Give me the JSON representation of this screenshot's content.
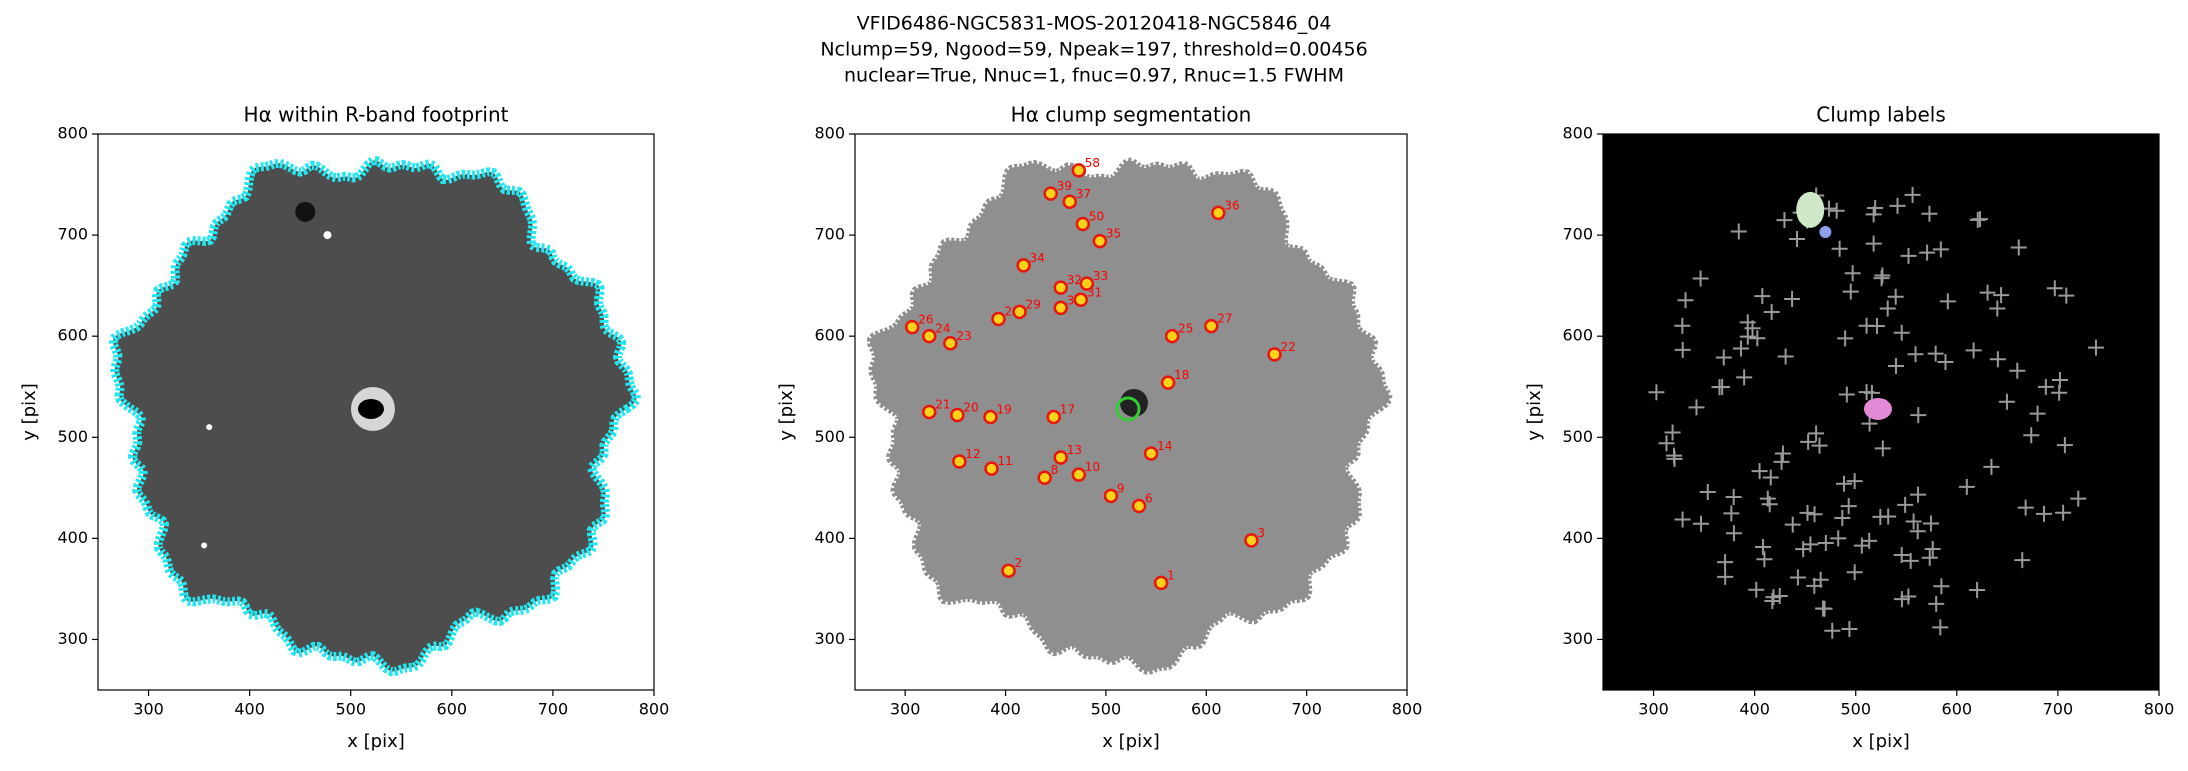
{
  "figure_title": [
    "VFID6486-NGC5831-MOS-20120418-NGC5846_04",
    "Nclump=59, Ngood=59, Npeak=197, threshold=0.00456",
    "nuclear=True, Nnuc=1, fnuc=0.97, Rnuc=1.5 FWHM"
  ],
  "chart_data": [
    {
      "type": "image",
      "title": "Hα within R-band footprint",
      "xlabel": "x [pix]",
      "ylabel": "y [pix]",
      "xlim": [
        250,
        800
      ],
      "ylim": [
        250,
        800
      ],
      "xticks": [
        300,
        400,
        500,
        600,
        700,
        800
      ],
      "yticks": [
        300,
        400,
        500,
        600,
        700,
        800
      ]
    },
    {
      "type": "scatter",
      "title": "Hα clump segmentation",
      "xlabel": "x [pix]",
      "ylabel": "y [pix]",
      "xlim": [
        250,
        800
      ],
      "ylim": [
        250,
        800
      ],
      "xticks": [
        300,
        400,
        500,
        600,
        700,
        800
      ],
      "yticks": [
        300,
        400,
        500,
        600,
        700,
        800
      ],
      "point_labels": [
        "1",
        "2",
        "3",
        "6",
        "9",
        "10",
        "8",
        "13",
        "14",
        "11",
        "12",
        "19",
        "20",
        "21",
        "17",
        "18",
        "26",
        "23",
        "24",
        "25",
        "27",
        "22",
        "28",
        "29",
        "30",
        "31",
        "32",
        "33",
        "34",
        "35",
        "36",
        "37",
        "58",
        "39",
        "50"
      ],
      "x": [
        555,
        403,
        645,
        533,
        505,
        473,
        439,
        455,
        545,
        386,
        354,
        385,
        352,
        324,
        448,
        562,
        307,
        345,
        324,
        566,
        605,
        668,
        393,
        414,
        455,
        475,
        455,
        481,
        418,
        494,
        612,
        464,
        473,
        445,
        477
      ],
      "values": [
        356,
        368,
        398,
        432,
        442,
        463,
        460,
        480,
        484,
        469,
        476,
        520,
        522,
        525,
        520,
        554,
        609,
        593,
        600,
        600,
        610,
        582,
        617,
        624,
        628,
        636,
        648,
        652,
        670,
        694,
        722,
        733,
        764,
        741,
        711
      ]
    },
    {
      "type": "image",
      "title": "Clump labels",
      "xlabel": "x [pix]",
      "ylabel": "y [pix]",
      "xlim": [
        250,
        800
      ],
      "ylim": [
        250,
        800
      ],
      "xticks": [
        300,
        400,
        500,
        600,
        700,
        800
      ],
      "yticks": [
        300,
        400,
        500,
        600,
        700,
        800
      ]
    }
  ]
}
